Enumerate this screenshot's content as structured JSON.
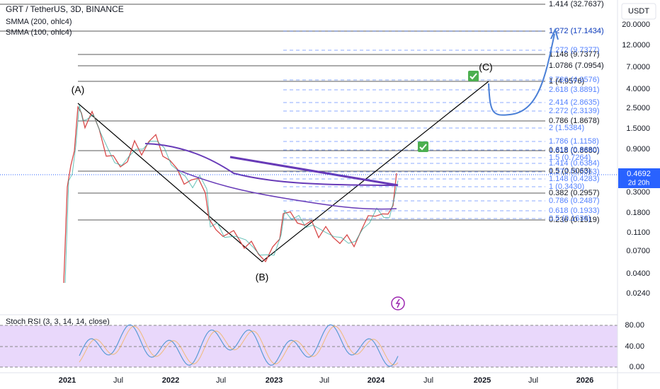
{
  "header": {
    "symbol": "GRT / TetherUS, 3D, BINANCE",
    "indicators": [
      "SMMA (200, ohlc4)",
      "SMMA (100, ohlc4)"
    ],
    "currency": "USDT"
  },
  "fib_black": [
    "1.414 (32.7637)",
    "1.272 (17.1434)",
    "1.148 (9.7377)",
    "1.0786 (7.0954)",
    "1 (4.9576)",
    "0.786 (1.8678)",
    "0.618 (0.8680)",
    "0.5 (0.5063)",
    "0.382 (0.2957)",
    "0.236 (0.1519)"
  ],
  "fib_blue": [
    "1.272 (17.1434)",
    "1.272 (9.7377)",
    "2.786 (4.9576)",
    "2.618 (3.8891)",
    "2.414 (2.8635)",
    "2.272 (2.3139)",
    "2 (1.5384)",
    "1.786 (1.1158)",
    "1.618 (0.8680)",
    "1.5 (0.7264)",
    "1.414 (0.6384)",
    "1.272 (0.5063)",
    "1.148 (0.4283)",
    "1 (0.3430)",
    "0.786 (0.2487)",
    "0.618 (0.1933)",
    "0.5 (0.1636)"
  ],
  "waves": [
    "(A)",
    "(B)",
    "(C)"
  ],
  "price_axis": [
    "20.0000",
    "12.0000",
    "7.0000",
    "4.0000",
    "2.5000",
    "1.5000",
    "0.9000",
    "0.3000",
    "0.1800",
    "0.1100",
    "0.0700",
    "0.0400",
    "0.0240"
  ],
  "last_price": {
    "price": "0.4692",
    "countdown": "2d 20h"
  },
  "stoch": {
    "label": "Stoch RSI (3, 3, 14, 14, close)",
    "axis": [
      "80.00",
      "40.00",
      "0.00"
    ]
  },
  "time_axis": [
    "2021",
    "Jul",
    "2022",
    "Jul",
    "2023",
    "Jul",
    "2024",
    "Jul",
    "2025",
    "Jul",
    "2026"
  ]
}
